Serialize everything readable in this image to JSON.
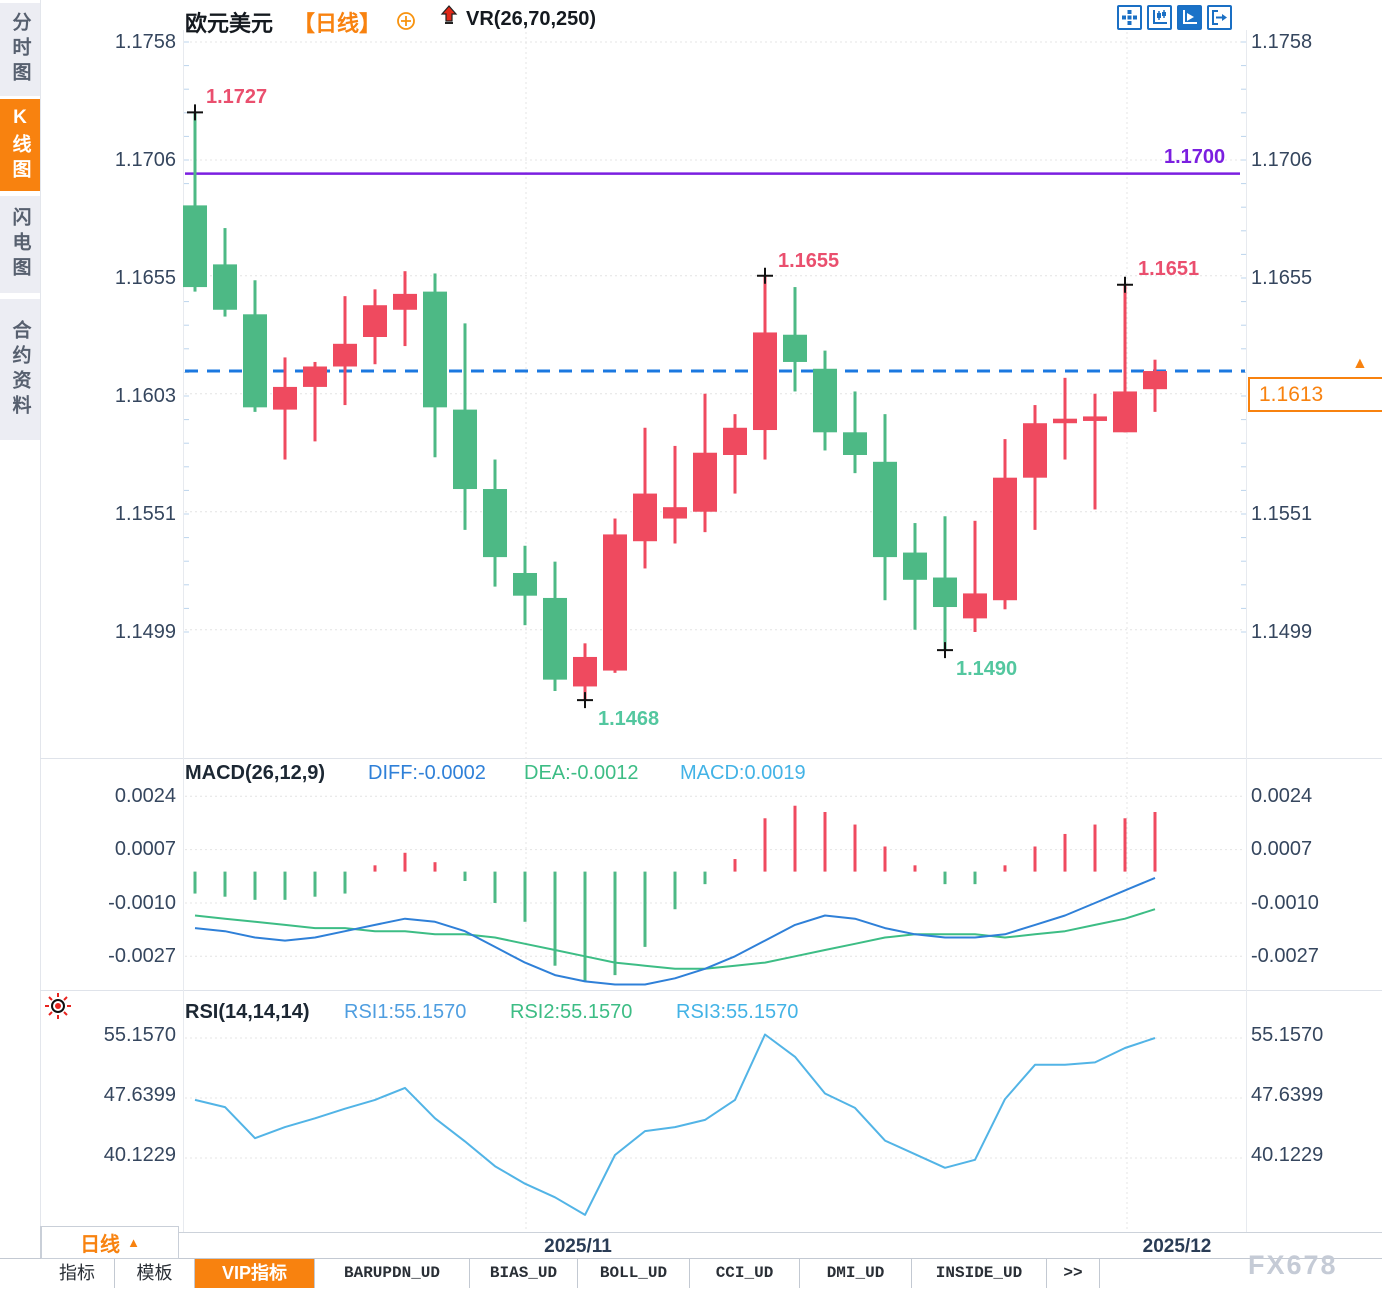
{
  "header": {
    "symbol": "欧元美元",
    "period": "【日线】",
    "overlay_indicator": "VR(26,70,250)"
  },
  "sidebar_tabs": [
    {
      "label": "分时图",
      "active": false
    },
    {
      "label": "K线图",
      "active": true
    },
    {
      "label": "闪电图",
      "active": false
    },
    {
      "label": "合约资料",
      "active": false
    }
  ],
  "toolbar_buttons": [
    {
      "icon": "move-crosshair-icon",
      "active": false
    },
    {
      "icon": "axes-candle-icon",
      "active": false
    },
    {
      "icon": "axes-play-icon",
      "active": true
    },
    {
      "icon": "exit-panel-icon",
      "active": false
    }
  ],
  "price_axis": {
    "left_labels": [
      "1.1758",
      "1.1706",
      "1.1655",
      "1.1603",
      "1.1551",
      "1.1499"
    ],
    "left_values": [
      1.1758,
      1.1706,
      1.1655,
      1.1603,
      1.1551,
      1.1499
    ],
    "right_labels": [
      "1.1758",
      "1.1706",
      "1.1655",
      "1.1551",
      "1.1499"
    ],
    "right_values": [
      1.1758,
      1.1706,
      1.1655,
      1.1551,
      1.1499
    ]
  },
  "macd_axis": {
    "labels": [
      "0.0024",
      "0.0007",
      "-0.0010",
      "-0.0027"
    ],
    "values": [
      0.0024,
      0.0007,
      -0.001,
      -0.0027
    ]
  },
  "rsi_axis": {
    "labels": [
      "55.1570",
      "47.6399",
      "40.1229"
    ],
    "values": [
      55.157,
      47.6399,
      40.1229
    ]
  },
  "levels": {
    "resistance": {
      "label": "1.1700",
      "value": 1.17
    },
    "last_price": {
      "label": "1.1613",
      "value": 1.1613
    }
  },
  "annotations": [
    {
      "text": "1.1727",
      "kind": "high",
      "candle": 0,
      "price": 1.1727
    },
    {
      "text": "1.1468",
      "kind": "low",
      "candle": 13,
      "price": 1.1468
    },
    {
      "text": "1.1655",
      "kind": "high",
      "candle": 19,
      "price": 1.1655
    },
    {
      "text": "1.1490",
      "kind": "low",
      "candle": 25,
      "price": 1.149
    },
    {
      "text": "1.1651",
      "kind": "high",
      "candle": 31,
      "price": 1.1651
    }
  ],
  "macd_title": {
    "name": "MACD(26,12,9)",
    "diff": "DIFF:-0.0002",
    "dea": "DEA:-0.0012",
    "macd": "MACD:0.0019"
  },
  "rsi_title": {
    "name": "RSI(14,14,14)",
    "rsi1": "RSI1:55.1570",
    "rsi2": "RSI2:55.1570",
    "rsi3": "RSI3:55.1570"
  },
  "x_axis": {
    "ticks": [
      {
        "label": "2025/11",
        "x": 526
      },
      {
        "label": "2025/12",
        "x": 1127
      }
    ]
  },
  "period_selector": {
    "label": "日线",
    "arrow": "▲"
  },
  "bottom_tabs": [
    {
      "label": "指标",
      "active": false
    },
    {
      "label": "模板",
      "active": false
    },
    {
      "label": "VIP指标",
      "active": true
    },
    {
      "label": "BARUPDN_UD",
      "active": false
    },
    {
      "label": "BIAS_UD",
      "active": false
    },
    {
      "label": "BOLL_UD",
      "active": false
    },
    {
      "label": "CCI_UD",
      "active": false
    },
    {
      "label": "DMI_UD",
      "active": false
    },
    {
      "label": "INSIDE_UD",
      "active": false
    },
    {
      "label": ">>",
      "active": false
    }
  ],
  "watermark": "FX678",
  "colors": {
    "up": "#ef4a5f",
    "down": "#4db985",
    "accent_orange": "#f8820f",
    "purple_line": "#7b1fe0",
    "dashed_blue": "#1b78e0",
    "diff_line": "#2f80d8",
    "dea_line": "#3dbd85",
    "rsi_line": "#52b4e6",
    "grid": "#e4e4e4"
  },
  "chart_data": {
    "type": "candlestick",
    "title": "欧元美元 日线 (EUR/USD daily)",
    "legend_position": "top",
    "grid": true,
    "price_ylim": [
      1.1462,
      1.1762
    ],
    "x_gridline_labels": [
      "2025/11",
      "2025/12"
    ],
    "ohlc": [
      [
        1.1686,
        1.1727,
        1.1648,
        1.165
      ],
      [
        1.166,
        1.1676,
        1.1637,
        1.164
      ],
      [
        1.1638,
        1.1653,
        1.1595,
        1.1597
      ],
      [
        1.1596,
        1.1619,
        1.1574,
        1.1606
      ],
      [
        1.1606,
        1.1617,
        1.1582,
        1.1615
      ],
      [
        1.1615,
        1.1646,
        1.1598,
        1.1625
      ],
      [
        1.1628,
        1.1649,
        1.1616,
        1.1642
      ],
      [
        1.164,
        1.1657,
        1.1624,
        1.1647
      ],
      [
        1.1648,
        1.1656,
        1.1575,
        1.1597
      ],
      [
        1.1596,
        1.1634,
        1.1543,
        1.1561
      ],
      [
        1.1561,
        1.1574,
        1.1518,
        1.1531
      ],
      [
        1.1524,
        1.1536,
        1.1501,
        1.1514
      ],
      [
        1.1513,
        1.1529,
        1.1472,
        1.1477
      ],
      [
        1.1474,
        1.1493,
        1.1468,
        1.1487
      ],
      [
        1.1481,
        1.1548,
        1.148,
        1.1541
      ],
      [
        1.1538,
        1.1588,
        1.1526,
        1.1559
      ],
      [
        1.1548,
        1.158,
        1.1537,
        1.1553
      ],
      [
        1.1551,
        1.1603,
        1.1542,
        1.1577
      ],
      [
        1.1576,
        1.1594,
        1.1559,
        1.1588
      ],
      [
        1.1587,
        1.1655,
        1.1574,
        1.163
      ],
      [
        1.1629,
        1.165,
        1.1604,
        1.1617
      ],
      [
        1.1614,
        1.1622,
        1.1578,
        1.1586
      ],
      [
        1.1586,
        1.1604,
        1.1568,
        1.1576
      ],
      [
        1.1573,
        1.1594,
        1.1512,
        1.1531
      ],
      [
        1.1533,
        1.1546,
        1.1499,
        1.1521
      ],
      [
        1.1522,
        1.1549,
        1.149,
        1.1509
      ],
      [
        1.1504,
        1.1547,
        1.1498,
        1.1515
      ],
      [
        1.1512,
        1.1583,
        1.1508,
        1.1566
      ],
      [
        1.1566,
        1.1598,
        1.1543,
        1.159
      ],
      [
        1.159,
        1.161,
        1.1574,
        1.1592
      ],
      [
        1.1591,
        1.1603,
        1.1552,
        1.1593
      ],
      [
        1.1586,
        1.1651,
        1.1586,
        1.1604
      ],
      [
        1.1605,
        1.1618,
        1.1595,
        1.1613
      ]
    ],
    "indicators": {
      "macd": {
        "params": [
          26,
          12,
          9
        ],
        "ylim": [
          -0.0038,
          0.0029
        ],
        "diff": [
          -0.0018,
          -0.0019,
          -0.0021,
          -0.0022,
          -0.0021,
          -0.0019,
          -0.0017,
          -0.0015,
          -0.0016,
          -0.0019,
          -0.0024,
          -0.0029,
          -0.0033,
          -0.0035,
          -0.0036,
          -0.0036,
          -0.0034,
          -0.0031,
          -0.0027,
          -0.0022,
          -0.0017,
          -0.0014,
          -0.0015,
          -0.0018,
          -0.002,
          -0.0021,
          -0.0021,
          -0.002,
          -0.0017,
          -0.0014,
          -0.001,
          -0.0006,
          -0.0002
        ],
        "dea": [
          -0.0014,
          -0.0015,
          -0.0016,
          -0.0017,
          -0.0018,
          -0.0018,
          -0.0019,
          -0.0019,
          -0.002,
          -0.002,
          -0.0021,
          -0.0023,
          -0.0025,
          -0.0027,
          -0.0029,
          -0.003,
          -0.0031,
          -0.0031,
          -0.003,
          -0.0029,
          -0.0027,
          -0.0025,
          -0.0023,
          -0.0021,
          -0.002,
          -0.002,
          -0.002,
          -0.0021,
          -0.002,
          -0.0019,
          -0.0017,
          -0.0015,
          -0.0012
        ],
        "hist": [
          -0.0007,
          -0.0008,
          -0.0009,
          -0.0009,
          -0.0008,
          -0.0007,
          0.0002,
          0.0006,
          0.0003,
          -0.0003,
          -0.001,
          -0.0016,
          -0.003,
          -0.0035,
          -0.0033,
          -0.0024,
          -0.0012,
          -0.0004,
          0.0004,
          0.0017,
          0.0021,
          0.0019,
          0.0015,
          0.0008,
          0.0002,
          -0.0004,
          -0.0004,
          0.0002,
          0.0008,
          0.0012,
          0.0015,
          0.0017,
          0.0019
        ],
        "current": {
          "diff": -0.0002,
          "dea": -0.0012,
          "macd": 0.0019
        }
      },
      "rsi": {
        "params": [
          14,
          14,
          14
        ],
        "ylim": [
          31,
          58
        ],
        "rsi1": [
          47.4,
          46.5,
          42.6,
          44.0,
          45.1,
          46.3,
          47.4,
          48.9,
          45.1,
          42.2,
          39.1,
          36.9,
          35.2,
          33.0,
          40.5,
          43.5,
          44.0,
          44.9,
          47.4,
          55.6,
          52.8,
          48.2,
          46.4,
          42.3,
          40.6,
          38.9,
          39.9,
          47.5,
          51.8,
          51.8,
          52.1,
          53.9,
          55.157
        ],
        "current": {
          "rsi1": 55.157,
          "rsi2": 55.157,
          "rsi3": 55.157
        }
      }
    }
  }
}
